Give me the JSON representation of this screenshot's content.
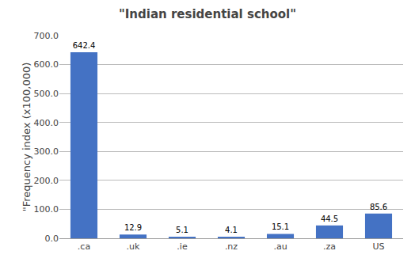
{
  "chart_data": {
    "type": "bar",
    "title": "\"Indian residential school\"",
    "ylabel": "\"Frequency index (x100,000)",
    "categories": [
      ".ca",
      ".uk",
      ".ie",
      ".nz",
      ".au",
      ".za",
      "US"
    ],
    "values": [
      642.4,
      12.9,
      5.1,
      4.1,
      15.1,
      44.5,
      85.6
    ],
    "color": "#4472c4",
    "ylim": [
      0,
      700
    ],
    "yticks": [
      {
        "value": 0,
        "label": "0.0"
      },
      {
        "value": 100,
        "label": "100.0"
      },
      {
        "value": 200,
        "label": "200.0"
      },
      {
        "value": 300,
        "label": "300.0"
      },
      {
        "value": 400,
        "label": "400.0"
      },
      {
        "value": 500,
        "label": "500.0"
      },
      {
        "value": 600,
        "label": "600.0"
      },
      {
        "value": 700,
        "label": "700.0"
      }
    ],
    "grid": true,
    "data_labels": true
  }
}
